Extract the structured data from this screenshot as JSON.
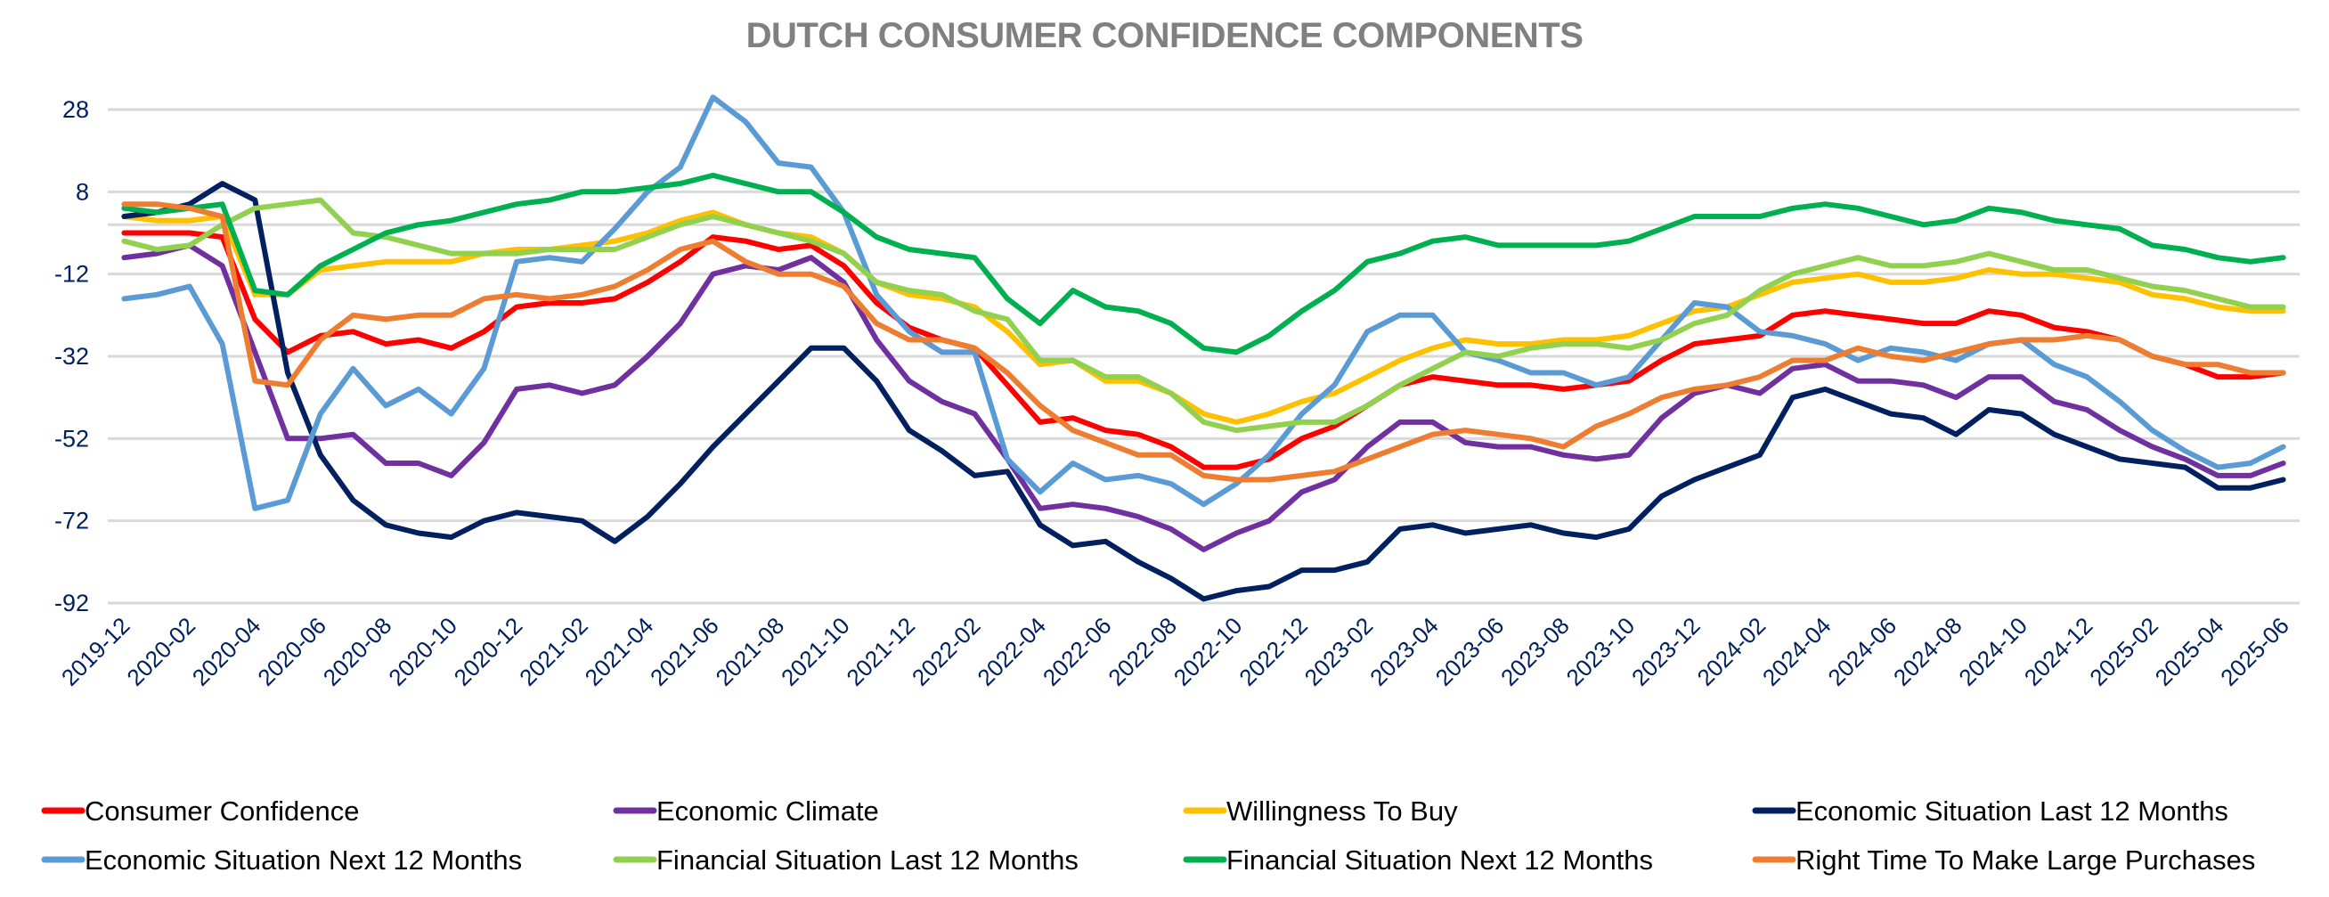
{
  "chart_data": {
    "type": "line",
    "title": "DUTCH CONSUMER CONFIDENCE COMPONENTS",
    "xlabel": "",
    "ylabel": "",
    "ylim": [
      -92,
      34
    ],
    "yticks": [
      28,
      8,
      -12,
      -32,
      -52,
      -72,
      -92
    ],
    "zero_line": true,
    "grid": true,
    "legend_position": "bottom",
    "x": [
      "2019-12",
      "2020-01",
      "2020-02",
      "2020-03",
      "2020-04",
      "2020-05",
      "2020-06",
      "2020-07",
      "2020-08",
      "2020-09",
      "2020-10",
      "2020-11",
      "2020-12",
      "2021-01",
      "2021-02",
      "2021-03",
      "2021-04",
      "2021-05",
      "2021-06",
      "2021-07",
      "2021-08",
      "2021-09",
      "2021-10",
      "2021-11",
      "2021-12",
      "2022-01",
      "2022-02",
      "2022-03",
      "2022-04",
      "2022-05",
      "2022-06",
      "2022-07",
      "2022-08",
      "2022-09",
      "2022-10",
      "2022-11",
      "2022-12",
      "2023-01",
      "2023-02",
      "2023-03",
      "2023-04",
      "2023-05",
      "2023-06",
      "2023-07",
      "2023-08",
      "2023-09",
      "2023-10",
      "2023-11",
      "2023-12",
      "2024-01",
      "2024-02",
      "2024-03",
      "2024-04",
      "2024-05",
      "2024-06",
      "2024-07",
      "2024-08",
      "2024-09",
      "2024-10",
      "2024-11",
      "2024-12",
      "2025-01",
      "2025-02",
      "2025-03",
      "2025-04",
      "2025-05",
      "2025-06"
    ],
    "x_tick_labels": [
      "2019-12",
      "2020-02",
      "2020-04",
      "2020-06",
      "2020-08",
      "2020-10",
      "2020-12",
      "2021-02",
      "2021-04",
      "2021-06",
      "2021-08",
      "2021-10",
      "2021-12",
      "2022-02",
      "2022-04",
      "2022-06",
      "2022-08",
      "2022-10",
      "2022-12",
      "2023-02",
      "2023-04",
      "2023-06",
      "2023-08",
      "2023-10",
      "2023-12",
      "2024-02",
      "2024-04",
      "2024-06",
      "2024-08",
      "2024-10",
      "2024-12",
      "2025-02",
      "2025-04",
      "2025-06"
    ],
    "series": [
      {
        "name": "Consumer Confidence",
        "color": "#FF0000",
        "values": [
          -2,
          -2,
          -2,
          -3,
          -23,
          -31,
          -27,
          -26,
          -29,
          -28,
          -30,
          -26,
          -20,
          -19,
          -19,
          -18,
          -14,
          -9,
          -3,
          -4,
          -6,
          -5,
          -10,
          -19,
          -25,
          -28,
          -30,
          -39,
          -48,
          -47,
          -50,
          -51,
          -54,
          -59,
          -59,
          -57,
          -52,
          -49,
          -44,
          -39,
          -37,
          -38,
          -39,
          -39,
          -40,
          -39,
          -38,
          -33,
          -29,
          -28,
          -27,
          -22,
          -21,
          -22,
          -23,
          -24,
          -24,
          -21,
          -22,
          -25,
          -26,
          -28,
          -32,
          -34,
          -37,
          -37,
          -36
        ]
      },
      {
        "name": "Economic Climate",
        "color": "#7030A0",
        "values": [
          -8,
          -7,
          -5,
          -10,
          -31,
          -52,
          -52,
          -51,
          -58,
          -58,
          -61,
          -53,
          -40,
          -39,
          -41,
          -39,
          -32,
          -24,
          -12,
          -10,
          -11,
          -8,
          -14,
          -28,
          -38,
          -43,
          -46,
          -57,
          -69,
          -68,
          -69,
          -71,
          -74,
          -79,
          -75,
          -72,
          -65,
          -62,
          -54,
          -48,
          -48,
          -53,
          -54,
          -54,
          -56,
          -57,
          -56,
          -47,
          -41,
          -39,
          -41,
          -35,
          -34,
          -38,
          -38,
          -39,
          -42,
          -37,
          -37,
          -43,
          -45,
          -50,
          -54,
          -57,
          -61,
          -61,
          -58
        ]
      },
      {
        "name": "Willingness To Buy",
        "color": "#FFC000",
        "values": [
          2,
          1,
          1,
          2,
          -17,
          -17,
          -11,
          -10,
          -9,
          -9,
          -9,
          -7,
          -6,
          -6,
          -5,
          -4,
          -2,
          1,
          3,
          0,
          -2,
          -3,
          -7,
          -14,
          -17,
          -18,
          -20,
          -26,
          -34,
          -33,
          -38,
          -38,
          -41,
          -46,
          -48,
          -46,
          -43,
          -41,
          -37,
          -33,
          -30,
          -28,
          -29,
          -29,
          -28,
          -28,
          -27,
          -24,
          -21,
          -20,
          -17,
          -14,
          -13,
          -12,
          -14,
          -14,
          -13,
          -11,
          -12,
          -12,
          -13,
          -14,
          -17,
          -18,
          -20,
          -21,
          -21
        ]
      },
      {
        "name": "Economic Situation Last 12 Months",
        "color": "#002060",
        "values": [
          2,
          3,
          5,
          10,
          6,
          -36,
          -56,
          -67,
          -73,
          -75,
          -76,
          -72,
          -70,
          -71,
          -72,
          -77,
          -71,
          -63,
          -54,
          -46,
          -38,
          -30,
          -30,
          -38,
          -50,
          -55,
          -61,
          -60,
          -73,
          -78,
          -77,
          -82,
          -86,
          -91,
          -89,
          -88,
          -84,
          -84,
          -82,
          -74,
          -73,
          -75,
          -74,
          -73,
          -75,
          -76,
          -74,
          -66,
          -62,
          -59,
          -56,
          -42,
          -40,
          -43,
          -46,
          -47,
          -51,
          -45,
          -46,
          -51,
          -54,
          -57,
          -58,
          -59,
          -64,
          -64,
          -62
        ]
      },
      {
        "name": "Economic Situation Next 12 Months",
        "color": "#5B9BD5",
        "values": [
          -18,
          -17,
          -15,
          -29,
          -69,
          -67,
          -46,
          -35,
          -44,
          -40,
          -46,
          -35,
          -9,
          -8,
          -9,
          -1,
          8,
          14,
          31,
          25,
          15,
          14,
          3,
          -17,
          -26,
          -31,
          -31,
          -57,
          -65,
          -58,
          -62,
          -61,
          -63,
          -68,
          -63,
          -56,
          -46,
          -39,
          -26,
          -22,
          -22,
          -31,
          -33,
          -36,
          -36,
          -39,
          -37,
          -28,
          -19,
          -20,
          -26,
          -27,
          -29,
          -33,
          -30,
          -31,
          -33,
          -29,
          -28,
          -34,
          -37,
          -43,
          -50,
          -55,
          -59,
          -58,
          -54
        ]
      },
      {
        "name": "Financial Situation Last 12 Months",
        "color": "#92D050",
        "values": [
          -4,
          -6,
          -5,
          0,
          4,
          5,
          6,
          -2,
          -3,
          -5,
          -7,
          -7,
          -7,
          -6,
          -6,
          -6,
          -3,
          0,
          2,
          0,
          -2,
          -4,
          -7,
          -14,
          -16,
          -17,
          -21,
          -23,
          -33,
          -33,
          -37,
          -37,
          -41,
          -48,
          -50,
          -49,
          -48,
          -48,
          -44,
          -39,
          -35,
          -31,
          -32,
          -30,
          -29,
          -29,
          -30,
          -28,
          -24,
          -22,
          -16,
          -12,
          -10,
          -8,
          -10,
          -10,
          -9,
          -7,
          -9,
          -11,
          -11,
          -13,
          -15,
          -16,
          -18,
          -20,
          -20
        ]
      },
      {
        "name": "Financial Situation Next 12 Months",
        "color": "#00B050",
        "values": [
          4,
          3,
          4,
          5,
          -16,
          -17,
          -10,
          -6,
          -2,
          0,
          1,
          3,
          5,
          6,
          8,
          8,
          9,
          10,
          12,
          10,
          8,
          8,
          3,
          -3,
          -6,
          -7,
          -8,
          -18,
          -24,
          -16,
          -20,
          -21,
          -24,
          -30,
          -31,
          -27,
          -21,
          -16,
          -9,
          -7,
          -4,
          -3,
          -5,
          -5,
          -5,
          -5,
          -4,
          -1,
          2,
          2,
          2,
          4,
          5,
          4,
          2,
          0,
          1,
          4,
          3,
          1,
          0,
          -1,
          -5,
          -6,
          -8,
          -9,
          -8
        ]
      },
      {
        "name": "Right Time To Make Large Purchases",
        "color": "#ED7D31",
        "values": [
          5,
          5,
          4,
          2,
          -38,
          -39,
          -28,
          -22,
          -23,
          -22,
          -22,
          -18,
          -17,
          -18,
          -17,
          -15,
          -11,
          -6,
          -4,
          -9,
          -12,
          -12,
          -15,
          -24,
          -28,
          -28,
          -30,
          -36,
          -44,
          -50,
          -53,
          -56,
          -56,
          -61,
          -62,
          -62,
          -61,
          -60,
          -57,
          -54,
          -51,
          -50,
          -51,
          -52,
          -54,
          -49,
          -46,
          -42,
          -40,
          -39,
          -37,
          -33,
          -33,
          -30,
          -32,
          -33,
          -31,
          -29,
          -28,
          -28,
          -27,
          -28,
          -32,
          -34,
          -34,
          -36,
          -36
        ]
      }
    ]
  }
}
